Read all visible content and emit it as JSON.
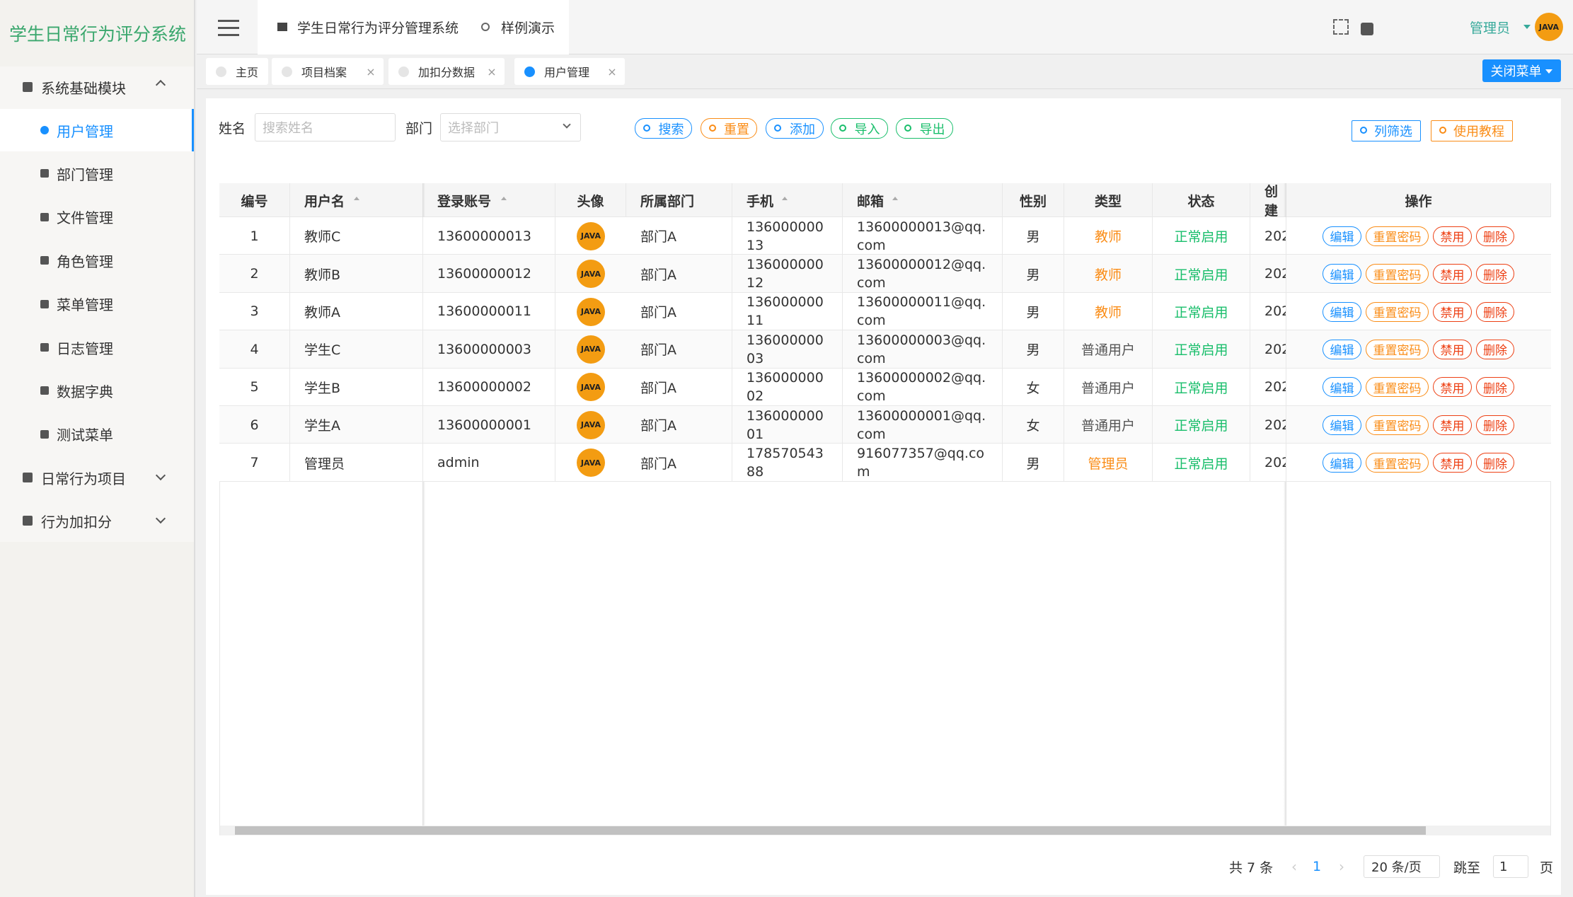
{
  "sidebar": {
    "title": "学生日常行为评分系统",
    "menu": [
      {
        "label": "系统基础模块",
        "children": [
          "用户管理",
          "部门管理",
          "文件管理",
          "角色管理",
          "菜单管理",
          "日志管理",
          "数据字典",
          "测试菜单"
        ]
      },
      {
        "label": "日常行为项目"
      },
      {
        "label": "行为加扣分"
      }
    ]
  },
  "header": {
    "breadcrumbs": [
      "学生日常行为评分管理系统",
      "样例演示"
    ],
    "user": "管理员"
  },
  "tabs": [
    "主页",
    "项目档案",
    "加扣分数据",
    "用户管理"
  ],
  "close_menu": "关闭菜单",
  "search": {
    "name_label": "姓名",
    "name_placeholder": "搜索姓名",
    "dept_label": "部门",
    "dept_placeholder": "选择部门",
    "buttons": [
      "搜索",
      "重置",
      "添加",
      "导入",
      "导出"
    ],
    "tools": [
      "列筛选",
      "使用教程"
    ]
  },
  "table": {
    "columns": [
      "编号",
      "用户名",
      "登录账号",
      "头像",
      "所属部门",
      "手机",
      "邮箱",
      "性别",
      "类型",
      "状态",
      "创建",
      "操作"
    ],
    "avatar_text": "JAVA",
    "rows": [
      [
        "1",
        "教师C",
        "13600000013",
        "部门A",
        "13600000013",
        "13600000013@qq.com",
        "男",
        "教师",
        "正常启用",
        "202"
      ],
      [
        "2",
        "教师B",
        "13600000012",
        "部门A",
        "13600000012",
        "13600000012@qq.com",
        "男",
        "教师",
        "正常启用",
        "202"
      ],
      [
        "3",
        "教师A",
        "13600000011",
        "部门A",
        "13600000011",
        "13600000011@qq.com",
        "男",
        "教师",
        "正常启用",
        "202"
      ],
      [
        "4",
        "学生C",
        "13600000003",
        "部门A",
        "13600000003",
        "13600000003@qq.com",
        "男",
        "普通用户",
        "正常启用",
        "202"
      ],
      [
        "5",
        "学生B",
        "13600000002",
        "部门A",
        "13600000002",
        "13600000002@qq.com",
        "女",
        "普通用户",
        "正常启用",
        "202"
      ],
      [
        "6",
        "学生A",
        "13600000001",
        "部门A",
        "13600000001",
        "13600000001@qq.com",
        "女",
        "普通用户",
        "正常启用",
        "202"
      ],
      [
        "7",
        "管理员",
        "admin",
        "部门A",
        "17857054388",
        "916077357@qq.com",
        "男",
        "管理员",
        "正常启用",
        "202"
      ]
    ],
    "row_actions": [
      "编辑",
      "重置密码",
      "禁用",
      "删除"
    ]
  },
  "pagination": {
    "total": "共 7 条",
    "page": "1",
    "size": "20 条/页",
    "goto": "跳至",
    "goto_value": "1",
    "unit": "页"
  }
}
